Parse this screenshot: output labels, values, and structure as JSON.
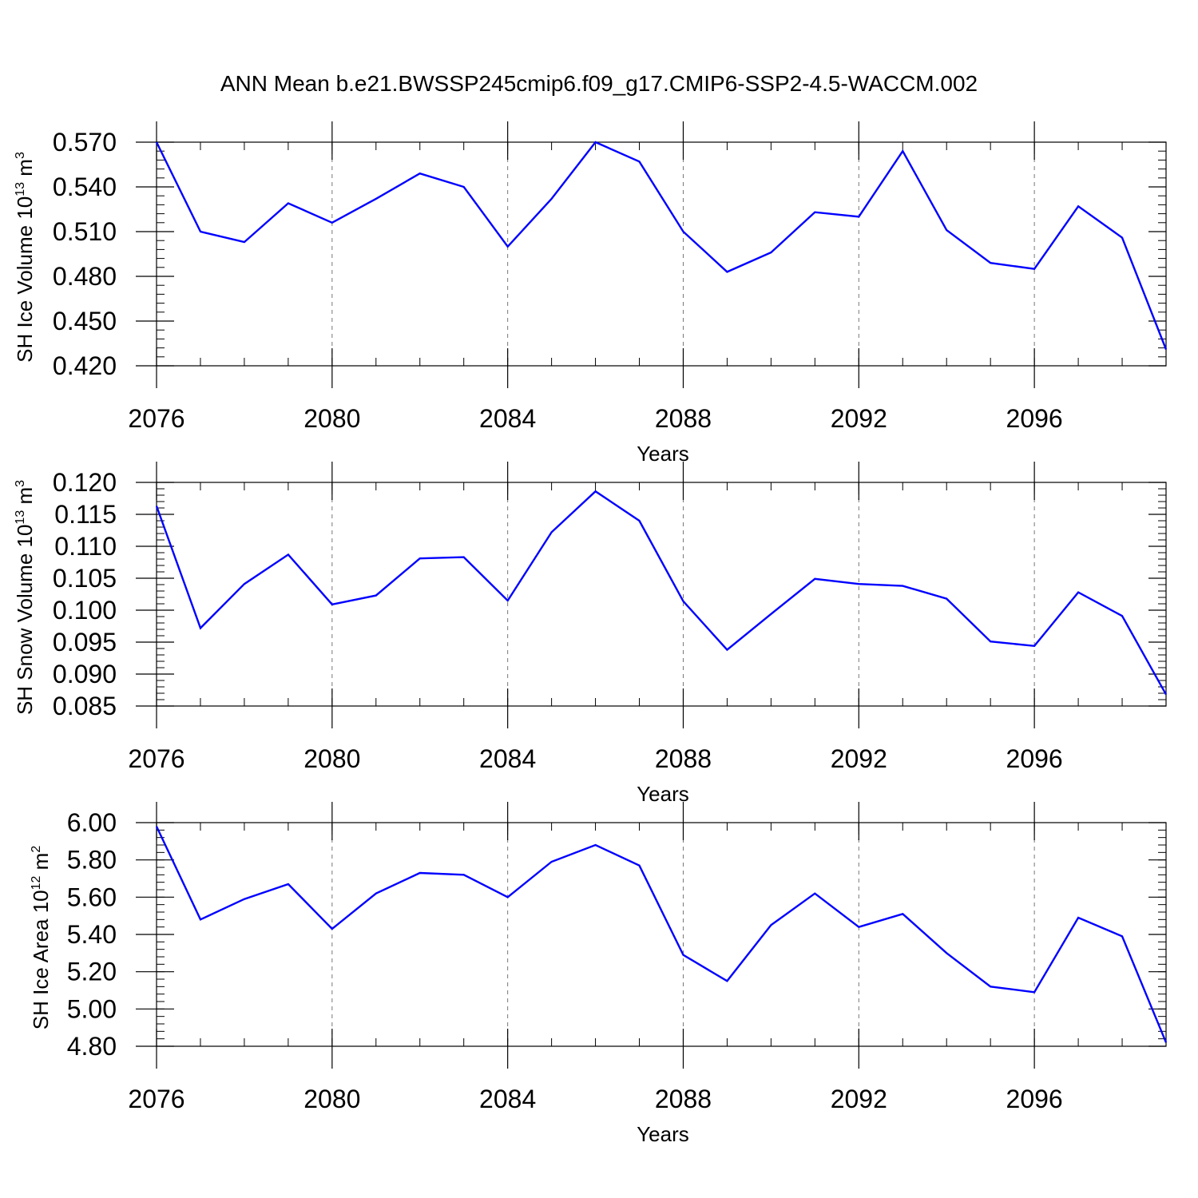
{
  "title": "ANN Mean b.e21.BWSSP245cmip6.f09_g17.CMIP6-SSP2-4.5-WACCM.002",
  "colors": {
    "series": "#0000ff",
    "axis": "#000000",
    "grid": "#777777"
  },
  "chart_data": [
    {
      "type": "line",
      "title": "ANN Mean b.e21.BWSSP245cmip6.f09_g17.CMIP6-SSP2-4.5-WACCM.002",
      "xlabel": "Years",
      "ylabel": "SH Ice Volume 10",
      "ylabel_exp": "13",
      "ylabel_unit": " m",
      "ylabel_unit_exp": "3",
      "xlim": [
        2076,
        2099
      ],
      "ylim": [
        0.42,
        0.57
      ],
      "x_ticks": [
        2076,
        2080,
        2084,
        2088,
        2092,
        2096
      ],
      "x_tick_labels": [
        "2076",
        "2080",
        "2084",
        "2088",
        "2092",
        "2096"
      ],
      "y_ticks": [
        0.42,
        0.45,
        0.48,
        0.51,
        0.54,
        0.57
      ],
      "y_tick_labels": [
        "0.420",
        "0.450",
        "0.480",
        "0.510",
        "0.540",
        "0.570"
      ],
      "y_minor_step": 0.006,
      "grid": "vertical-dashed",
      "x": [
        2076,
        2077,
        2078,
        2079,
        2080,
        2081,
        2082,
        2083,
        2084,
        2085,
        2086,
        2087,
        2088,
        2089,
        2090,
        2091,
        2092,
        2093,
        2094,
        2095,
        2096,
        2097,
        2098,
        2099
      ],
      "values": [
        0.57,
        0.51,
        0.503,
        0.529,
        0.516,
        0.532,
        0.549,
        0.54,
        0.5,
        0.532,
        0.57,
        0.557,
        0.51,
        0.483,
        0.496,
        0.523,
        0.52,
        0.564,
        0.511,
        0.489,
        0.485,
        0.527,
        0.506,
        0.431
      ]
    },
    {
      "type": "line",
      "xlabel": "Years",
      "ylabel": "SH Snow Volume 10",
      "ylabel_exp": "13",
      "ylabel_unit": " m",
      "ylabel_unit_exp": "3",
      "xlim": [
        2076,
        2099
      ],
      "ylim": [
        0.085,
        0.12
      ],
      "x_ticks": [
        2076,
        2080,
        2084,
        2088,
        2092,
        2096
      ],
      "x_tick_labels": [
        "2076",
        "2080",
        "2084",
        "2088",
        "2092",
        "2096"
      ],
      "y_ticks": [
        0.085,
        0.09,
        0.095,
        0.1,
        0.105,
        0.11,
        0.115,
        0.12
      ],
      "y_tick_labels": [
        "0.085",
        "0.090",
        "0.095",
        "0.100",
        "0.105",
        "0.110",
        "0.115",
        "0.120"
      ],
      "y_minor_step": 0.001,
      "grid": "vertical-dashed",
      "x": [
        2076,
        2077,
        2078,
        2079,
        2080,
        2081,
        2082,
        2083,
        2084,
        2085,
        2086,
        2087,
        2088,
        2089,
        2090,
        2091,
        2092,
        2093,
        2094,
        2095,
        2096,
        2097,
        2098,
        2099
      ],
      "values": [
        0.1163,
        0.0972,
        0.1041,
        0.1087,
        0.1009,
        0.1023,
        0.1081,
        0.1083,
        0.1015,
        0.1122,
        0.1186,
        0.114,
        0.1014,
        0.0938,
        0.0994,
        0.1049,
        0.1041,
        0.1038,
        0.1018,
        0.0951,
        0.0944,
        0.1028,
        0.0991,
        0.0868
      ]
    },
    {
      "type": "line",
      "xlabel": "Years",
      "ylabel": "SH Ice Area 10",
      "ylabel_exp": "12",
      "ylabel_unit": " m",
      "ylabel_unit_exp": "2",
      "xlim": [
        2076,
        2099
      ],
      "ylim": [
        4.8,
        6.0
      ],
      "x_ticks": [
        2076,
        2080,
        2084,
        2088,
        2092,
        2096
      ],
      "x_tick_labels": [
        "2076",
        "2080",
        "2084",
        "2088",
        "2092",
        "2096"
      ],
      "y_ticks": [
        4.8,
        5.0,
        5.2,
        5.4,
        5.6,
        5.8,
        6.0
      ],
      "y_tick_labels": [
        "4.80",
        "5.00",
        "5.20",
        "5.40",
        "5.60",
        "5.80",
        "6.00"
      ],
      "y_minor_step": 0.04,
      "grid": "vertical-dashed",
      "x": [
        2076,
        2077,
        2078,
        2079,
        2080,
        2081,
        2082,
        2083,
        2084,
        2085,
        2086,
        2087,
        2088,
        2089,
        2090,
        2091,
        2092,
        2093,
        2094,
        2095,
        2096,
        2097,
        2098,
        2099
      ],
      "values": [
        5.98,
        5.48,
        5.59,
        5.67,
        5.43,
        5.62,
        5.73,
        5.72,
        5.6,
        5.79,
        5.88,
        5.77,
        5.29,
        5.15,
        5.45,
        5.62,
        5.44,
        5.51,
        5.3,
        5.12,
        5.09,
        5.49,
        5.39,
        4.82
      ]
    }
  ]
}
